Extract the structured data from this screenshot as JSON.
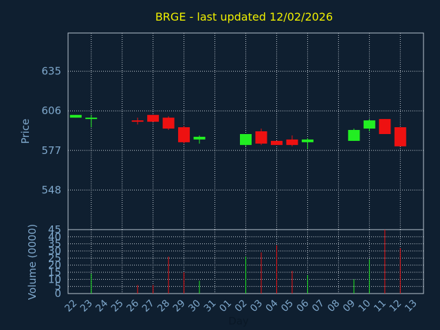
{
  "colors": {
    "background": "#0f1f30",
    "panel_border": "#b8c4d0",
    "grid": "#c8d0d8",
    "text": "#7fa8cc",
    "title": "#f0f000",
    "up": "#22ee22",
    "down": "#ee1111"
  },
  "chart_data": {
    "type": "candlestick",
    "title": "BRGE - last updated 12/02/2026",
    "price_panel": {
      "ylabel": "Price",
      "yticks": [
        548,
        577,
        606,
        635
      ],
      "ytick_labels": [
        "548",
        "577",
        "606",
        "635"
      ],
      "ylim": [
        519,
        663
      ],
      "grid": true
    },
    "volume_panel": {
      "ylabel": "Volume (0000)",
      "yticks": [
        0,
        5,
        10,
        15,
        20,
        25,
        30,
        35,
        40,
        45
      ],
      "ytick_labels": [
        "0",
        "5",
        "10",
        "15",
        "20",
        "25",
        "30",
        "35",
        "40",
        "45"
      ],
      "ylim": [
        0,
        45
      ],
      "grid": true
    },
    "xlabel": "Day",
    "x_labels": [
      "22",
      "23",
      "24",
      "25",
      "26",
      "27",
      "28",
      "29",
      "30",
      "31",
      "01",
      "02",
      "03",
      "04",
      "05",
      "06",
      "07",
      "08",
      "09",
      "10",
      "11",
      "12",
      "13"
    ],
    "x_grid_every": 2,
    "candles": [
      {
        "day": "22",
        "open": 601,
        "high": 603,
        "low": 601,
        "close": 603,
        "volume": 0
      },
      {
        "day": "23",
        "open": 600,
        "high": 603,
        "low": 594,
        "close": 601,
        "volume": 14
      },
      {
        "day": "26",
        "open": 599,
        "high": 601,
        "low": 596,
        "close": 598,
        "volume": 6
      },
      {
        "day": "27",
        "open": 603,
        "high": 603,
        "low": 598,
        "close": 598,
        "volume": 6
      },
      {
        "day": "28",
        "open": 601,
        "high": 602,
        "low": 592,
        "close": 593,
        "volume": 26
      },
      {
        "day": "29",
        "open": 594,
        "high": 595,
        "low": 582,
        "close": 583,
        "volume": 15
      },
      {
        "day": "30",
        "open": 585,
        "high": 588,
        "low": 582,
        "close": 587,
        "volume": 9
      },
      {
        "day": "02",
        "open": 581,
        "high": 589,
        "low": 580,
        "close": 589,
        "volume": 26
      },
      {
        "day": "03",
        "open": 591,
        "high": 593,
        "low": 581,
        "close": 582,
        "volume": 29
      },
      {
        "day": "04",
        "open": 584,
        "high": 584,
        "low": 581,
        "close": 581,
        "volume": 34
      },
      {
        "day": "05",
        "open": 585,
        "high": 588,
        "low": 580,
        "close": 581,
        "volume": 16
      },
      {
        "day": "06",
        "open": 583,
        "high": 586,
        "low": 578,
        "close": 585,
        "volume": 13
      },
      {
        "day": "09",
        "open": 584,
        "high": 593,
        "low": 584,
        "close": 592,
        "volume": 10
      },
      {
        "day": "10",
        "open": 593,
        "high": 600,
        "low": 591,
        "close": 599,
        "volume": 24
      },
      {
        "day": "11",
        "open": 600,
        "high": 600,
        "low": 589,
        "close": 589,
        "volume": 45
      },
      {
        "day": "12",
        "open": 594,
        "high": 594,
        "low": 580,
        "close": 580,
        "volume": 32
      }
    ]
  }
}
